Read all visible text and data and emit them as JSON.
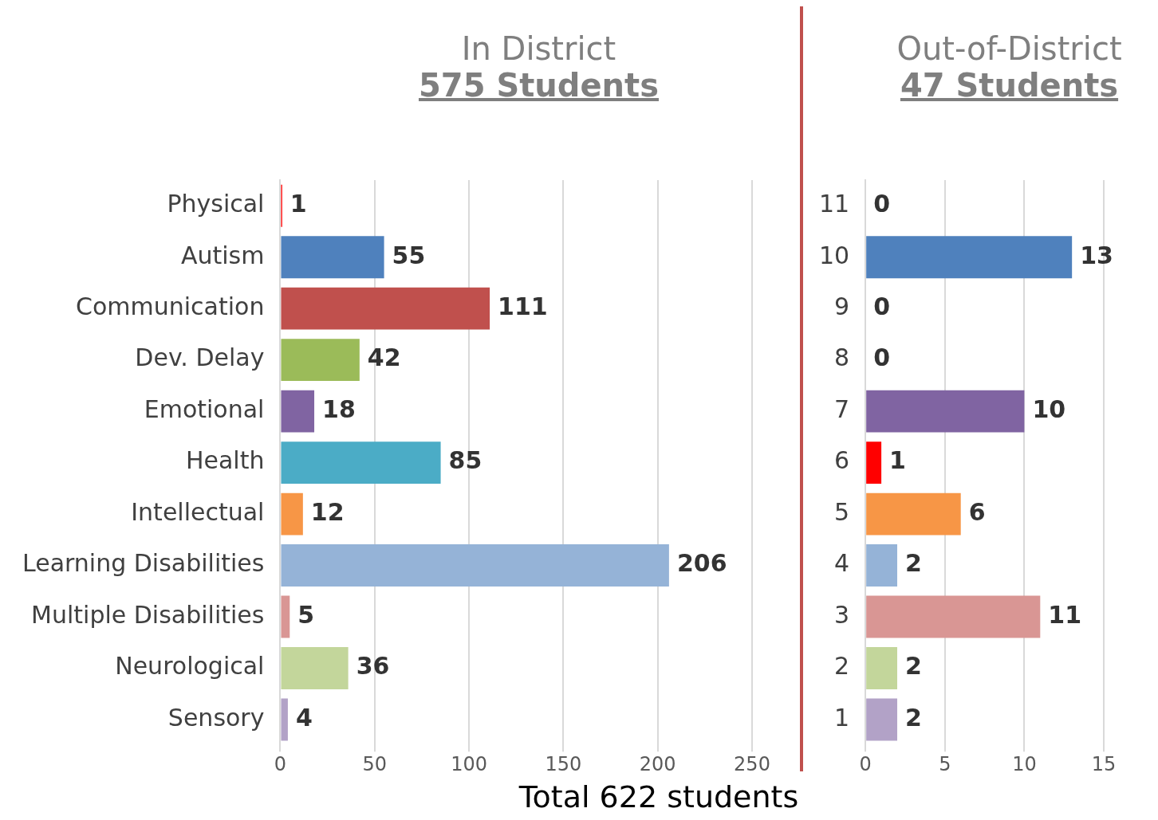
{
  "chart_data": [
    {
      "type": "bar",
      "orientation": "horizontal",
      "title": "In District",
      "subtitle": "575 Students",
      "categories": [
        "Physical",
        "Autism",
        "Communication",
        "Dev. Delay",
        "Emotional",
        "Health",
        "Intellectual",
        "Learning Disabilities",
        "Multiple Disabilities",
        "Neurological",
        "Sensory"
      ],
      "values": [
        1,
        55,
        111,
        42,
        18,
        85,
        12,
        206,
        5,
        36,
        4
      ],
      "colors": [
        "#ff0000",
        "#4f81bd",
        "#c0504d",
        "#9bbb59",
        "#8064a2",
        "#4bacc6",
        "#f79646",
        "#95b3d7",
        "#d99694",
        "#c3d69b",
        "#b2a2c7"
      ],
      "xlim": [
        0,
        250
      ],
      "xticks": [
        0,
        50,
        100,
        150,
        200,
        250
      ],
      "grid": "x",
      "data_labels": true,
      "legend": false,
      "annotations": [
        "Total 622 students"
      ]
    },
    {
      "type": "bar",
      "orientation": "horizontal",
      "title": "Out-of-District",
      "subtitle": "47 Students",
      "categories": [
        "11",
        "10",
        "9",
        "8",
        "7",
        "6",
        "5",
        "4",
        "3",
        "2",
        "1"
      ],
      "values": [
        0,
        13,
        0,
        0,
        10,
        1,
        6,
        2,
        11,
        2,
        2
      ],
      "colors": [
        "#4f81bd",
        "#4f81bd",
        "#c0504d",
        "#9bbb59",
        "#8064a2",
        "#ff0000",
        "#f79646",
        "#95b3d7",
        "#d99694",
        "#c3d69b",
        "#b2a2c7"
      ],
      "xlim": [
        0,
        15
      ],
      "xticks": [
        0,
        5,
        10,
        15
      ],
      "grid": "x",
      "data_labels": true,
      "legend": false
    }
  ]
}
